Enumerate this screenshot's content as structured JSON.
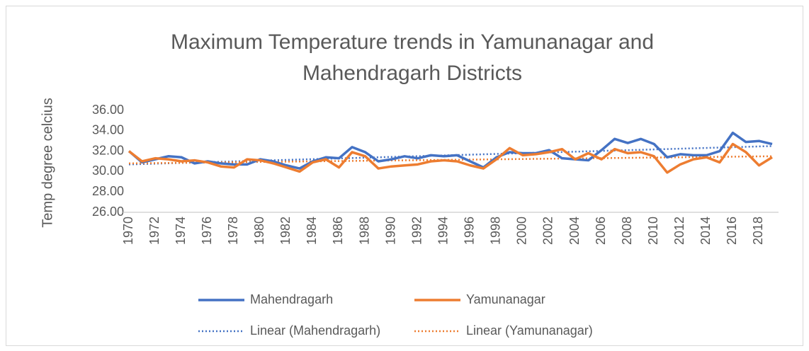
{
  "chart_data": {
    "type": "line",
    "title": "Maximum Temperature trends in Yamunanagar and Mahendragarh Districts",
    "y_label": "Temp degree celcius",
    "x": [
      1970,
      1971,
      1972,
      1973,
      1974,
      1975,
      1976,
      1977,
      1978,
      1979,
      1980,
      1981,
      1982,
      1983,
      1984,
      1985,
      1986,
      1987,
      1988,
      1989,
      1990,
      1991,
      1992,
      1993,
      1994,
      1995,
      1996,
      1997,
      1998,
      1999,
      2000,
      2001,
      2002,
      2003,
      2004,
      2005,
      2006,
      2007,
      2008,
      2009,
      2010,
      2011,
      2012,
      2013,
      2014,
      2015,
      2016,
      2017,
      2018,
      2019
    ],
    "xlim": [
      1970,
      2019
    ],
    "xticks": [
      1970,
      1972,
      1974,
      1976,
      1978,
      1980,
      1982,
      1984,
      1986,
      1988,
      1990,
      1992,
      1994,
      1996,
      1998,
      2000,
      2002,
      2004,
      2006,
      2008,
      2010,
      2012,
      2014,
      2016,
      2018
    ],
    "ylim": [
      26,
      36
    ],
    "yticks": [
      {
        "value": 26,
        "label": "26.00"
      },
      {
        "value": 28,
        "label": "28.00"
      },
      {
        "value": 30,
        "label": "30.00"
      },
      {
        "value": 32,
        "label": "32.00"
      },
      {
        "value": 34,
        "label": "34.00"
      },
      {
        "value": 36,
        "label": "36.00"
      }
    ],
    "grid": false,
    "legend": "bottom",
    "series": [
      {
        "name": "Mahendragarh",
        "color": "#4472c4",
        "values": [
          32.0,
          30.9,
          31.2,
          31.5,
          31.4,
          30.8,
          31.0,
          30.8,
          30.7,
          30.7,
          31.2,
          31.0,
          30.6,
          30.3,
          31.0,
          31.4,
          31.3,
          32.4,
          31.9,
          31.0,
          31.2,
          31.5,
          31.3,
          31.6,
          31.5,
          31.6,
          31.0,
          30.4,
          31.4,
          31.9,
          31.8,
          31.8,
          32.1,
          31.3,
          31.2,
          31.1,
          32.1,
          33.2,
          32.8,
          33.2,
          32.7,
          31.4,
          31.7,
          31.6,
          31.6,
          32.0,
          33.8,
          32.9,
          33.0,
          32.7
        ]
      },
      {
        "name": "Yamunanagar",
        "color": "#ed7d31",
        "values": [
          32.0,
          31.0,
          31.3,
          31.2,
          31.0,
          31.1,
          30.9,
          30.5,
          30.4,
          31.2,
          31.1,
          30.8,
          30.4,
          30.0,
          30.9,
          31.2,
          30.4,
          31.9,
          31.5,
          30.3,
          30.5,
          30.6,
          30.7,
          31.0,
          31.1,
          31.0,
          30.6,
          30.3,
          31.2,
          32.3,
          31.6,
          31.7,
          31.9,
          32.2,
          31.2,
          31.8,
          31.2,
          32.2,
          31.8,
          31.9,
          31.5,
          29.9,
          30.7,
          31.2,
          31.4,
          30.9,
          32.7,
          31.9,
          30.6,
          31.4
        ]
      }
    ],
    "trendlines": [
      {
        "name": "Linear (Mahendragarh)",
        "color": "#4472c4",
        "x": [
          1970,
          2019
        ],
        "values": [
          30.7,
          32.5
        ]
      },
      {
        "name": "Linear (Yamunanagar)",
        "color": "#ed7d31",
        "x": [
          1970,
          2019
        ],
        "values": [
          30.8,
          31.5
        ]
      }
    ]
  }
}
